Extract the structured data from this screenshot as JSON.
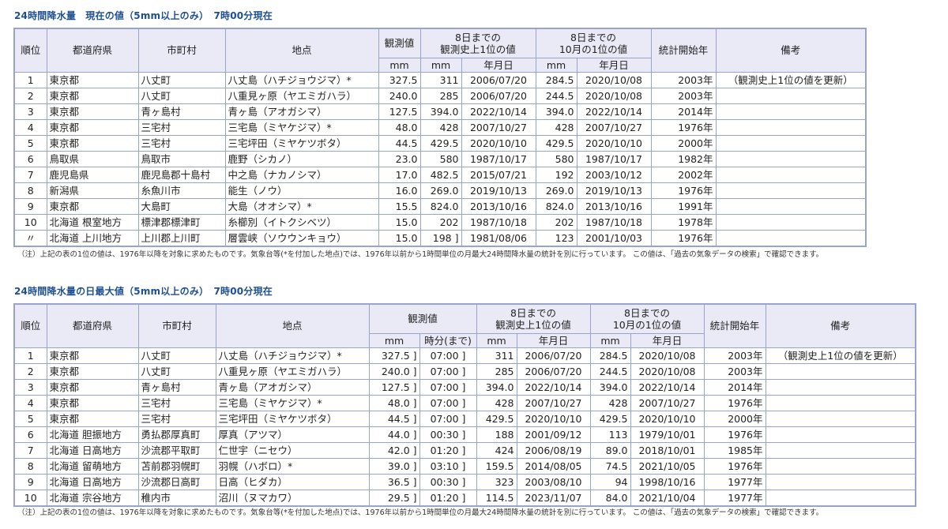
{
  "table1": {
    "title": "24時間降水量　現在の値（5mm以上のみ）　7時00分現在",
    "headers": {
      "rank": "順位",
      "pref": "都道府県",
      "city": "市町村",
      "station": "地点",
      "obs": "観測値",
      "record_all": "8日までの\n観測史上1位の値",
      "record_month": "8日までの\n10月の1位の値",
      "start_year": "統計開始年",
      "remarks": "備考",
      "mm": "mm",
      "date": "年月日"
    },
    "rows": [
      [
        "1",
        "東京都",
        "八丈町",
        "八丈島（ハチジョウジマ）*",
        "327.5",
        "311",
        "2006/07/20",
        "284.5",
        "2020/10/08",
        "2003年",
        "（観測史上1位の値を更新）"
      ],
      [
        "2",
        "東京都",
        "八丈町",
        "八重見ヶ原（ヤエミガハラ）",
        "240.0",
        "285",
        "2006/07/20",
        "244.5",
        "2020/10/08",
        "2003年",
        ""
      ],
      [
        "3",
        "東京都",
        "青ヶ島村",
        "青ヶ島（アオガシマ）",
        "127.5",
        "394.0",
        "2022/10/14",
        "394.0",
        "2022/10/14",
        "2014年",
        ""
      ],
      [
        "4",
        "東京都",
        "三宅村",
        "三宅島（ミヤケジマ）*",
        "48.0",
        "428",
        "2007/10/27",
        "428",
        "2007/10/27",
        "1976年",
        ""
      ],
      [
        "5",
        "東京都",
        "三宅村",
        "三宅坪田（ミヤケツボタ）",
        "44.5",
        "429.5",
        "2020/10/10",
        "429.5",
        "2020/10/10",
        "2000年",
        ""
      ],
      [
        "6",
        "鳥取県",
        "鳥取市",
        "鹿野（シカノ）",
        "23.0",
        "580",
        "1987/10/17",
        "580",
        "1987/10/17",
        "1982年",
        ""
      ],
      [
        "7",
        "鹿児島県",
        "鹿児島郡十島村",
        "中之島（ナカノシマ）",
        "17.0",
        "482.5",
        "2015/07/21",
        "192",
        "2003/10/12",
        "2002年",
        ""
      ],
      [
        "8",
        "新潟県",
        "糸魚川市",
        "能生（ノウ）",
        "16.0",
        "269.0",
        "2019/10/13",
        "269.0",
        "2019/10/13",
        "1976年",
        ""
      ],
      [
        "9",
        "東京都",
        "大島町",
        "大島（オオシマ）*",
        "15.5",
        "824.0",
        "2013/10/16",
        "824.0",
        "2013/10/16",
        "1991年",
        ""
      ],
      [
        "10",
        "北海道 根室地方",
        "標津郡標津町",
        "糸櫛別（イトクシベツ）",
        "15.0",
        "202",
        "1987/10/18",
        "202",
        "1987/10/18",
        "1978年",
        ""
      ],
      [
        "〃",
        "北海道 上川地方",
        "上川郡上川町",
        "層雲峡（ソウウンキョウ）",
        "15.0",
        "198 ]",
        "1981/08/06",
        "123",
        "2001/10/03",
        "1976年",
        ""
      ]
    ],
    "note": "（注）上記の表の1位の値は、1976年以降を対象に求めたものです。気象台等(*を付加した地点)では、1976年以前から1時間単位の月最大24時間降水量の統計を別に行っています。 この値は、「過去の気象データの検索」で確認できます。"
  },
  "table2": {
    "title": "24時間降水量の日最大値（5mm以上のみ）　7時00分現在",
    "headers": {
      "rank": "順位",
      "pref": "都道府県",
      "city": "市町村",
      "station": "地点",
      "obs": "観測値",
      "record_all": "8日までの\n観測史上1位の値",
      "record_month": "8日までの\n10月の1位の値",
      "start_year": "統計開始年",
      "remarks": "備考",
      "mm": "mm",
      "time": "時分(まで)",
      "date": "年月日"
    },
    "rows": [
      [
        "1",
        "東京都",
        "八丈町",
        "八丈島（ハチジョウジマ）*",
        "327.5 ]",
        "07:00 ]",
        "311",
        "2006/07/20",
        "284.5",
        "2020/10/08",
        "2003年",
        "（観測史上1位の値を更新）"
      ],
      [
        "2",
        "東京都",
        "八丈町",
        "八重見ヶ原（ヤエミガハラ）",
        "240.0 ]",
        "07:00 ]",
        "285",
        "2006/07/20",
        "244.5",
        "2020/10/08",
        "2003年",
        ""
      ],
      [
        "3",
        "東京都",
        "青ヶ島村",
        "青ヶ島（アオガシマ）",
        "127.5 ]",
        "07:00 ]",
        "394.0",
        "2022/10/14",
        "394.0",
        "2022/10/14",
        "2014年",
        ""
      ],
      [
        "4",
        "東京都",
        "三宅村",
        "三宅島（ミヤケジマ）*",
        "48.0 ]",
        "07:00 ]",
        "428",
        "2007/10/27",
        "428",
        "2007/10/27",
        "1976年",
        ""
      ],
      [
        "5",
        "東京都",
        "三宅村",
        "三宅坪田（ミヤケツボタ）",
        "44.5 ]",
        "07:00 ]",
        "429.5",
        "2020/10/10",
        "429.5",
        "2020/10/10",
        "2000年",
        ""
      ],
      [
        "6",
        "北海道 胆振地方",
        "勇払郡厚真町",
        "厚真（アツマ）",
        "44.0 ]",
        "00:30 ]",
        "188",
        "2001/09/12",
        "113",
        "1979/10/01",
        "1976年",
        ""
      ],
      [
        "7",
        "北海道 日高地方",
        "沙流郡平取町",
        "仁世宇（ニセウ）",
        "42.0 ]",
        "01:20 ]",
        "424",
        "2006/08/19",
        "89.0",
        "2018/10/01",
        "1985年",
        ""
      ],
      [
        "8",
        "北海道 留萌地方",
        "苫前郡羽幌町",
        "羽幌（ハボロ）*",
        "39.0 ]",
        "03:10 ]",
        "159.5",
        "2014/08/05",
        "74.5",
        "2021/10/05",
        "1976年",
        ""
      ],
      [
        "9",
        "北海道 日高地方",
        "沙流郡日高町",
        "日高（ヒダカ）",
        "36.5 ]",
        "00:30 ]",
        "323",
        "2003/08/10",
        "94",
        "1998/10/16",
        "1977年",
        ""
      ],
      [
        "10",
        "北海道 宗谷地方",
        "稚内市",
        "沼川（ヌマカワ）",
        "29.5 ]",
        "01:20 ]",
        "114.5",
        "2023/11/07",
        "84.0",
        "2021/10/04",
        "1977年",
        ""
      ]
    ],
    "note": "（注）上記の表の1位の値は、1976年以降を対象に求めたものです。気象台等(*を付加した地点)では、1976年以前から1時間単位の月最大24時間降水量の統計を別に行っています。 この値は、「過去の気象データの検索」で確認できます。"
  }
}
